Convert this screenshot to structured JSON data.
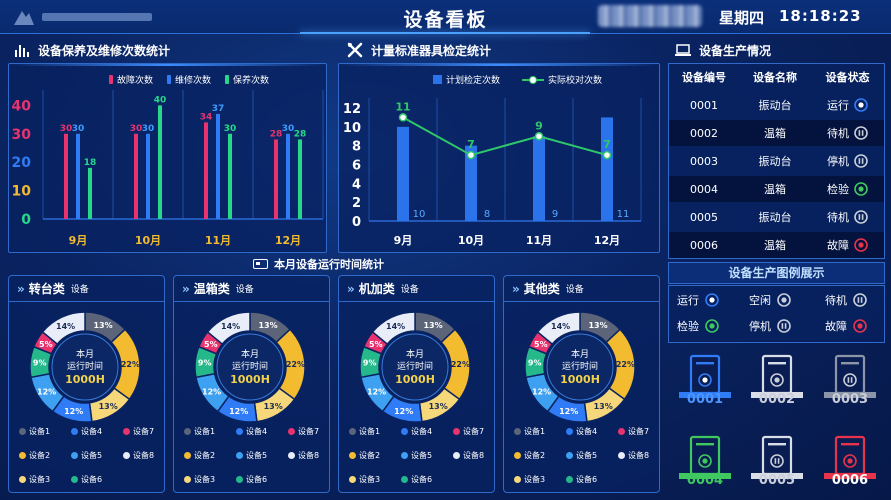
{
  "header": {
    "title": "设备看板",
    "weekday": "星期四",
    "time": "18:18:23"
  },
  "colors": {
    "fault": "#e8336e",
    "repair": "#2f7cf6",
    "maintain": "#27d88a",
    "planned": "#2a73ea",
    "actual": "#2ec86a"
  },
  "sections": {
    "maintenance": "设备保养及维修次数统计",
    "calibration": "计量标准器具检定统计",
    "production": "设备生产情况",
    "runtime": "本月设备运行时间统计",
    "legend_title": "设备生产图例展示"
  },
  "maintenance_legend": [
    "故障次数",
    "维修次数",
    "保养次数"
  ],
  "calibration_legend": [
    "计划检定次数",
    "实际校对次数"
  ],
  "chart_data": [
    {
      "type": "bar",
      "categories": [
        "9月",
        "10月",
        "11月",
        "12月"
      ],
      "series": [
        {
          "name": "故障次数",
          "values": [
            30,
            30,
            34,
            28
          ]
        },
        {
          "name": "维修次数",
          "values": [
            30,
            30,
            37,
            30
          ]
        },
        {
          "name": "保养次数",
          "values": [
            18,
            40,
            30,
            28
          ]
        }
      ],
      "yticks": [
        "0",
        "10",
        "20",
        "30",
        "40"
      ],
      "ylim": [
        0,
        44
      ]
    },
    {
      "type": "bar+line",
      "categories": [
        "9月",
        "10月",
        "11月",
        "12月"
      ],
      "series": [
        {
          "name": "计划检定次数",
          "type": "bar",
          "values": [
            10,
            8,
            9,
            11
          ]
        },
        {
          "name": "实际校对次数",
          "type": "line",
          "values": [
            11,
            7,
            9,
            7
          ]
        }
      ],
      "yticks": [
        "0",
        "2",
        "4",
        "6",
        "8",
        "10",
        "12"
      ],
      "ylim": [
        0,
        12
      ]
    }
  ],
  "donut_values": [
    13,
    22,
    13,
    12,
    12,
    9,
    5,
    14
  ],
  "donut_colors": [
    "#5b6478",
    "#f3bb2f",
    "#f6d77a",
    "#2f7cf6",
    "#3ea0f0",
    "#25b88a",
    "#e8336e",
    "#e8edf7"
  ],
  "donut_center": {
    "line1": "本月",
    "line2": "运行时间",
    "value": "1000H"
  },
  "donut_legend": [
    "设备1",
    "设备4",
    "设备7",
    "设备2",
    "设备5",
    "设备8",
    "设备3",
    "设备6"
  ],
  "donut_legend_colors": [
    "#5b6478",
    "#2f7cf6",
    "#e8336e",
    "#f3bb2f",
    "#3ea0f0",
    "#e8edf7",
    "#f6d77a",
    "#25b88a"
  ],
  "cards": [
    {
      "name": "转台类",
      "suffix": "设备"
    },
    {
      "name": "温箱类",
      "suffix": "设备"
    },
    {
      "name": "机加类",
      "suffix": "设备"
    },
    {
      "name": "其他类",
      "suffix": "设备"
    }
  ],
  "table": {
    "headers": [
      "设备编号",
      "设备名称",
      "设备状态"
    ],
    "rows": [
      {
        "id": "0001",
        "name": "振动台",
        "status": "运行",
        "icon": "run"
      },
      {
        "id": "0002",
        "name": "温箱",
        "status": "待机",
        "icon": "standby"
      },
      {
        "id": "0003",
        "name": "振动台",
        "status": "停机",
        "icon": "stop"
      },
      {
        "id": "0004",
        "name": "温箱",
        "status": "检验",
        "icon": "inspect"
      },
      {
        "id": "0005",
        "name": "振动台",
        "status": "待机",
        "icon": "standby"
      },
      {
        "id": "0006",
        "name": "温箱",
        "status": "故障",
        "icon": "fault"
      }
    ]
  },
  "status_legend": [
    {
      "label": "运行",
      "icon": "run"
    },
    {
      "label": "空闲",
      "icon": "idle"
    },
    {
      "label": "待机",
      "icon": "standby"
    },
    {
      "label": "检验",
      "icon": "inspect"
    },
    {
      "label": "停机",
      "icon": "stop"
    },
    {
      "label": "故障",
      "icon": "fault"
    }
  ],
  "machines": [
    {
      "label": "0001",
      "color": "#2f7cf6",
      "icon": "run"
    },
    {
      "label": "0002",
      "color": "#d8dde8",
      "icon": "idle"
    },
    {
      "label": "0003",
      "color": "#8d95a8",
      "icon": "standby"
    },
    {
      "label": "0004",
      "color": "#3fc85f",
      "icon": "inspect"
    },
    {
      "label": "0005",
      "color": "#d8dde8",
      "icon": "stop"
    },
    {
      "label": "0006",
      "color": "#e8334a",
      "icon": "fault"
    }
  ]
}
